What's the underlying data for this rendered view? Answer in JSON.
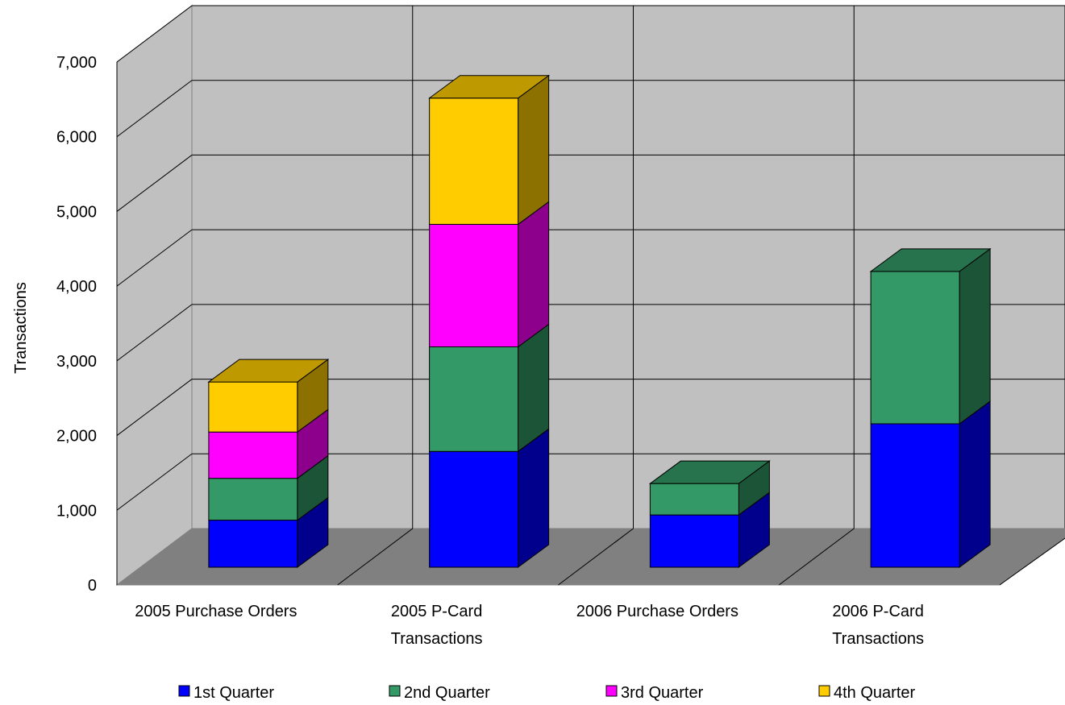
{
  "chart_data": {
    "type": "bar",
    "stacked": true,
    "three_d": true,
    "title": "",
    "xlabel": "",
    "ylabel": "Transactions",
    "ylim": [
      0,
      7000
    ],
    "yticks": [
      "0",
      "1,000",
      "2,000",
      "3,000",
      "4,000",
      "5,000",
      "6,000",
      "7,000"
    ],
    "categories": [
      [
        "2005 Purchase Orders"
      ],
      [
        "2005 P-Card",
        "Transactions"
      ],
      [
        "2006 Purchase Orders"
      ],
      [
        "2006 P-Card",
        "Transactions"
      ]
    ],
    "series": [
      {
        "name": "1st Quarter",
        "color": "#0000ff",
        "values": [
          630,
          1550,
          700,
          1920
        ]
      },
      {
        "name": "2nd Quarter",
        "color": "#339966",
        "values": [
          560,
          1400,
          420,
          2040
        ]
      },
      {
        "name": "3rd Quarter",
        "color": "#ff00ff",
        "values": [
          620,
          1640,
          null,
          null
        ]
      },
      {
        "name": "4th Quarter",
        "color": "#ffcc00",
        "values": [
          670,
          1690,
          null,
          null
        ]
      }
    ],
    "grid": true,
    "legend": "bottom"
  }
}
